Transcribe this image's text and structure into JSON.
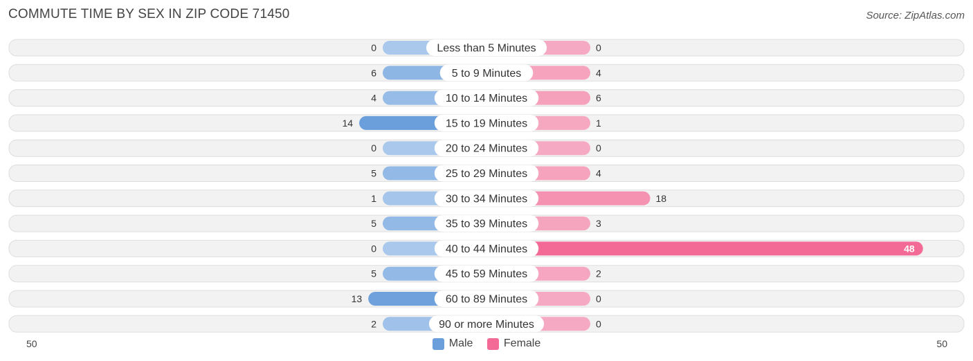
{
  "title": "COMMUTE TIME BY SEX IN ZIP CODE 71450",
  "source": "Source: ZipAtlas.com",
  "colors": {
    "male": "#6a9fdc",
    "male_light": "#a9c8ec",
    "female": "#f26a95",
    "female_light": "#f6a9c2"
  },
  "legend": {
    "male": "Male",
    "female": "Female"
  },
  "axis": {
    "left_label": "50",
    "right_label": "50"
  },
  "chart_data": {
    "type": "bar",
    "orientation": "diverging-horizontal",
    "title": "COMMUTE TIME BY SEX IN ZIP CODE 71450",
    "categories": [
      "Less than 5 Minutes",
      "5 to 9 Minutes",
      "10 to 14 Minutes",
      "15 to 19 Minutes",
      "20 to 24 Minutes",
      "25 to 29 Minutes",
      "30 to 34 Minutes",
      "35 to 39 Minutes",
      "40 to 44 Minutes",
      "45 to 59 Minutes",
      "60 to 89 Minutes",
      "90 or more Minutes"
    ],
    "series": [
      {
        "name": "Male",
        "values": [
          0,
          6,
          4,
          14,
          0,
          5,
          1,
          5,
          0,
          5,
          13,
          2
        ]
      },
      {
        "name": "Female",
        "values": [
          0,
          4,
          6,
          1,
          0,
          4,
          18,
          3,
          48,
          2,
          0,
          0
        ]
      }
    ],
    "xlim": [
      -50,
      50
    ],
    "legend_position": "bottom-center",
    "grid": false
  }
}
